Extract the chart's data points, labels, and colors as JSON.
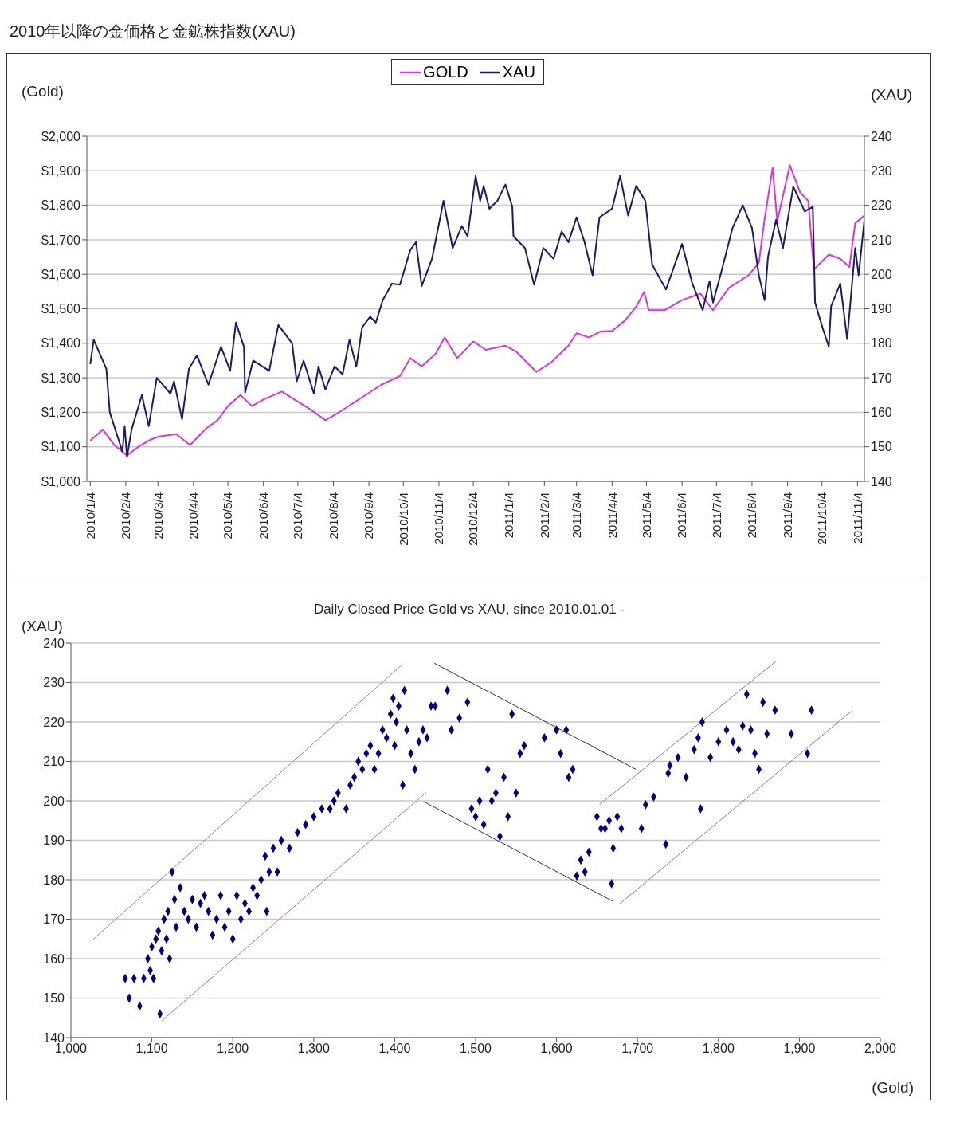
{
  "chart_data": [
    {
      "type": "line",
      "title": "2010年以降の金価格と金鉱株指数(XAU)",
      "ylabel": "(Gold)",
      "y2label": "(XAU)",
      "legend": "top",
      "grid": "y",
      "xlim": [
        "2010-01-01",
        "2011-11-10"
      ],
      "xticks": [
        {
          "value": "2010-01-04",
          "label": "2010/1/4"
        },
        {
          "value": "2010-02-04",
          "label": "2010/2/4"
        },
        {
          "value": "2010-03-04",
          "label": "2010/3/4"
        },
        {
          "value": "2010-04-04",
          "label": "2010/4/4"
        },
        {
          "value": "2010-05-04",
          "label": "2010/5/4"
        },
        {
          "value": "2010-06-04",
          "label": "2010/6/4"
        },
        {
          "value": "2010-07-04",
          "label": "2010/7/4"
        },
        {
          "value": "2010-08-04",
          "label": "2010/8/4"
        },
        {
          "value": "2010-09-04",
          "label": "2010/9/4"
        },
        {
          "value": "2010-10-04",
          "label": "2010/10/4"
        },
        {
          "value": "2010-11-04",
          "label": "2010/11/4"
        },
        {
          "value": "2010-12-04",
          "label": "2010/12/4"
        },
        {
          "value": "2011-01-04",
          "label": "2011/1/4"
        },
        {
          "value": "2011-02-04",
          "label": "2011/2/4"
        },
        {
          "value": "2011-03-04",
          "label": "2011/3/4"
        },
        {
          "value": "2011-04-04",
          "label": "2011/4/4"
        },
        {
          "value": "2011-05-04",
          "label": "2011/5/4"
        },
        {
          "value": "2011-06-04",
          "label": "2011/6/4"
        },
        {
          "value": "2011-07-04",
          "label": "2011/7/4"
        },
        {
          "value": "2011-08-04",
          "label": "2011/8/4"
        },
        {
          "value": "2011-09-04",
          "label": "2011/9/4"
        },
        {
          "value": "2011-10-04",
          "label": "2011/10/4"
        },
        {
          "value": "2011-11-04",
          "label": "2011/11/4"
        }
      ],
      "ylim": [
        1000,
        2000
      ],
      "yticks": [
        {
          "value": 1000,
          "label": "$1,000"
        },
        {
          "value": 1100,
          "label": "$1,100"
        },
        {
          "value": 1200,
          "label": "$1,200"
        },
        {
          "value": 1300,
          "label": "$1,300"
        },
        {
          "value": 1400,
          "label": "$1,400"
        },
        {
          "value": 1500,
          "label": "$1,500"
        },
        {
          "value": 1600,
          "label": "$1,600"
        },
        {
          "value": 1700,
          "label": "$1,700"
        },
        {
          "value": 1800,
          "label": "$1,800"
        },
        {
          "value": 1900,
          "label": "$1,900"
        },
        {
          "value": 2000,
          "label": "$2,000"
        }
      ],
      "y2lim": [
        140,
        240
      ],
      "y2ticks": [
        140,
        150,
        160,
        170,
        180,
        190,
        200,
        210,
        220,
        230,
        240
      ],
      "series": [
        {
          "name": "GOLD",
          "color": "#dd33dd",
          "x": [
            "2010-01-04",
            "2010-01-15",
            "2010-01-25",
            "2010-02-05",
            "2010-02-15",
            "2010-02-25",
            "2010-03-05",
            "2010-03-20",
            "2010-04-01",
            "2010-04-15",
            "2010-04-25",
            "2010-05-04",
            "2010-05-15",
            "2010-05-25",
            "2010-06-04",
            "2010-06-20",
            "2010-07-01",
            "2010-07-15",
            "2010-07-28",
            "2010-08-04",
            "2010-08-15",
            "2010-09-01",
            "2010-09-15",
            "2010-10-01",
            "2010-10-10",
            "2010-10-20",
            "2010-11-01",
            "2010-11-09",
            "2010-11-20",
            "2010-12-04",
            "2010-12-15",
            "2011-01-01",
            "2011-01-10",
            "2011-01-28",
            "2011-02-10",
            "2011-02-25",
            "2011-03-04",
            "2011-03-15",
            "2011-03-25",
            "2011-04-04",
            "2011-04-15",
            "2011-04-25",
            "2011-05-02",
            "2011-05-06",
            "2011-05-20",
            "2011-06-04",
            "2011-06-20",
            "2011-07-01",
            "2011-07-15",
            "2011-08-01",
            "2011-08-10",
            "2011-08-15",
            "2011-08-22",
            "2011-08-26",
            "2011-09-06",
            "2011-09-15",
            "2011-09-22",
            "2011-09-27",
            "2011-10-10",
            "2011-10-20",
            "2011-10-28",
            "2011-11-02",
            "2011-11-10"
          ],
          "values": [
            1118,
            1150,
            1105,
            1075,
            1100,
            1120,
            1130,
            1137,
            1105,
            1153,
            1177,
            1218,
            1250,
            1218,
            1237,
            1260,
            1237,
            1208,
            1177,
            1190,
            1213,
            1250,
            1280,
            1305,
            1357,
            1333,
            1369,
            1417,
            1357,
            1405,
            1381,
            1393,
            1377,
            1317,
            1345,
            1393,
            1429,
            1417,
            1434,
            1436,
            1465,
            1506,
            1549,
            1496,
            1496,
            1525,
            1544,
            1496,
            1561,
            1597,
            1633,
            1760,
            1909,
            1753,
            1916,
            1837,
            1813,
            1614,
            1657,
            1645,
            1621,
            1748,
            1770
          ]
        },
        {
          "name": "XAU",
          "color": "#1a1a6e",
          "axis": "y2",
          "x": [
            "2010-01-04",
            "2010-01-07",
            "2010-01-18",
            "2010-01-21",
            "2010-02-01",
            "2010-02-03",
            "2010-02-05",
            "2010-02-09",
            "2010-02-18",
            "2010-02-24",
            "2010-03-03",
            "2010-03-15",
            "2010-03-18",
            "2010-03-25",
            "2010-03-31",
            "2010-04-07",
            "2010-04-17",
            "2010-04-28",
            "2010-05-06",
            "2010-05-11",
            "2010-05-18",
            "2010-05-19",
            "2010-05-26",
            "2010-06-09",
            "2010-06-17",
            "2010-06-29",
            "2010-07-03",
            "2010-07-09",
            "2010-07-18",
            "2010-07-22",
            "2010-07-28",
            "2010-08-05",
            "2010-08-12",
            "2010-08-18",
            "2010-08-24",
            "2010-08-29",
            "2010-09-05",
            "2010-09-10",
            "2010-09-16",
            "2010-09-24",
            "2010-10-01",
            "2010-10-10",
            "2010-10-15",
            "2010-10-20",
            "2010-10-29",
            "2010-11-08",
            "2010-11-16",
            "2010-11-24",
            "2010-11-29",
            "2010-12-06",
            "2010-12-10",
            "2010-12-13",
            "2010-12-18",
            "2010-12-25",
            "2011-01-01",
            "2011-01-07",
            "2011-01-08",
            "2011-01-18",
            "2011-01-26",
            "2011-02-03",
            "2011-02-12",
            "2011-02-19",
            "2011-02-25",
            "2011-03-04",
            "2011-03-11",
            "2011-03-18",
            "2011-03-24",
            "2011-04-04",
            "2011-04-11",
            "2011-04-18",
            "2011-04-25",
            "2011-05-03",
            "2011-05-09",
            "2011-05-21",
            "2011-06-04",
            "2011-06-13",
            "2011-06-22",
            "2011-06-28",
            "2011-07-01",
            "2011-07-08",
            "2011-07-18",
            "2011-07-27",
            "2011-08-04",
            "2011-08-10",
            "2011-08-15",
            "2011-08-18",
            "2011-08-25",
            "2011-08-31",
            "2011-09-09",
            "2011-09-19",
            "2011-09-26",
            "2011-09-28",
            "2011-10-05",
            "2011-10-10",
            "2011-10-12",
            "2011-10-20",
            "2011-10-26",
            "2011-11-02",
            "2011-11-05",
            "2011-11-10"
          ],
          "values": [
            174,
            181,
            172.6,
            160,
            148.6,
            156,
            147,
            155,
            165,
            156,
            170,
            165.4,
            169,
            158,
            172.6,
            176.5,
            168,
            179,
            172,
            186,
            179,
            165.7,
            175,
            172,
            185.3,
            180,
            169,
            175,
            165.4,
            173.3,
            166.6,
            173.3,
            171,
            181,
            173.3,
            184.6,
            187.7,
            186,
            192.5,
            197.3,
            197,
            207,
            209.3,
            196.6,
            204.5,
            221.3,
            207.6,
            214,
            211,
            228.5,
            221.3,
            225.6,
            219,
            221.3,
            226,
            219.6,
            211,
            207.6,
            197,
            207.6,
            204.5,
            212.4,
            209.3,
            216.5,
            209.3,
            199.7,
            216.5,
            219,
            228.5,
            217,
            225.6,
            221.3,
            202.8,
            195.6,
            208.8,
            197.3,
            189.6,
            198,
            191.8,
            200.4,
            213.4,
            220,
            213.4,
            199.7,
            192.5,
            205.2,
            215.8,
            207.6,
            225.4,
            218.2,
            219.6,
            191.8,
            184,
            179,
            190.8,
            197.3,
            181.2,
            207.6,
            199.7,
            215.8
          ]
        }
      ]
    },
    {
      "type": "scatter",
      "title": "Daily Closed Price Gold vs XAU, since 2010.01.01 -",
      "xlabel": "(Gold)",
      "ylabel": "(XAU)",
      "grid": "y",
      "xlim": [
        1000,
        2000
      ],
      "xticks": [
        {
          "value": 1000,
          "label": "1,000"
        },
        {
          "value": 1100,
          "label": "1,100"
        },
        {
          "value": 1200,
          "label": "1,200"
        },
        {
          "value": 1300,
          "label": "1,300"
        },
        {
          "value": 1400,
          "label": "1,400"
        },
        {
          "value": 1500,
          "label": "1,500"
        },
        {
          "value": 1600,
          "label": "1,600"
        },
        {
          "value": 1700,
          "label": "1,700"
        },
        {
          "value": 1800,
          "label": "1,800"
        },
        {
          "value": 1900,
          "label": "1,900"
        },
        {
          "value": 2000,
          "label": "2,000"
        }
      ],
      "ylim": [
        140,
        240
      ],
      "yticks": [
        140,
        150,
        160,
        170,
        180,
        190,
        200,
        210,
        220,
        230,
        240
      ],
      "series": [
        {
          "color": "#000080",
          "marker": "diamond",
          "x": [
            1067,
            1072,
            1078,
            1085,
            1090,
            1095,
            1098,
            1100,
            1102,
            1105,
            1108,
            1110,
            1112,
            1115,
            1118,
            1120,
            1122,
            1125,
            1128,
            1130,
            1135,
            1140,
            1145,
            1150,
            1155,
            1160,
            1165,
            1170,
            1175,
            1180,
            1185,
            1190,
            1195,
            1200,
            1205,
            1210,
            1215,
            1220,
            1225,
            1230,
            1235,
            1240,
            1242,
            1245,
            1250,
            1255,
            1260,
            1270,
            1280,
            1290,
            1300,
            1310,
            1320,
            1325,
            1330,
            1340,
            1345,
            1350,
            1355,
            1360,
            1365,
            1370,
            1375,
            1380,
            1385,
            1390,
            1395,
            1398,
            1400,
            1402,
            1405,
            1410,
            1412,
            1415,
            1420,
            1425,
            1430,
            1435,
            1440,
            1445,
            1450,
            1465,
            1470,
            1480,
            1490,
            1495,
            1500,
            1505,
            1510,
            1515,
            1520,
            1525,
            1530,
            1535,
            1540,
            1545,
            1550,
            1555,
            1560,
            1585,
            1600,
            1605,
            1612,
            1615,
            1620,
            1625,
            1630,
            1635,
            1640,
            1650,
            1655,
            1660,
            1665,
            1668,
            1670,
            1675,
            1680,
            1705,
            1710,
            1720,
            1735,
            1738,
            1740,
            1750,
            1760,
            1770,
            1775,
            1778,
            1780,
            1790,
            1800,
            1810,
            1818,
            1825,
            1830,
            1835,
            1840,
            1845,
            1850,
            1855,
            1860,
            1870,
            1890,
            1910,
            1915
          ],
          "values": [
            155,
            150,
            155,
            148,
            155,
            160,
            157,
            163,
            155,
            165,
            167,
            146,
            162,
            170,
            165,
            172,
            160,
            182,
            175,
            168,
            178,
            172,
            170,
            175,
            168,
            174,
            176,
            172,
            166,
            170,
            176,
            168,
            172,
            165,
            176,
            170,
            174,
            172,
            178,
            176,
            180,
            186,
            172,
            182,
            188,
            182,
            190,
            188,
            192,
            194,
            196,
            198,
            198,
            200,
            202,
            198,
            204,
            206,
            210,
            208,
            212,
            214,
            208,
            212,
            218,
            216,
            222,
            226,
            214,
            220,
            224,
            204,
            228,
            218,
            212,
            208,
            215,
            218,
            216,
            224,
            224,
            228,
            218,
            221,
            225,
            198,
            196,
            200,
            194,
            208,
            200,
            202,
            191,
            206,
            196,
            222,
            202,
            212,
            214,
            216,
            218,
            212,
            218,
            206,
            208,
            181,
            185,
            182,
            187,
            196,
            193,
            193,
            195,
            179,
            188,
            196,
            193,
            193,
            199,
            201,
            189,
            207,
            209,
            211,
            206,
            213,
            216,
            198,
            220,
            211,
            215,
            218,
            215,
            213,
            219,
            227,
            218,
            212,
            208,
            225,
            217,
            223,
            217,
            212,
            223
          ]
        },
        {
          "type": "line",
          "color": "#c87878",
          "x": [
            1027,
            1410
          ],
          "values": [
            164.8,
            234.7
          ]
        },
        {
          "type": "line",
          "color": "#c87878",
          "x": [
            1112,
            1439
          ],
          "values": [
            144.2,
            202.1
          ]
        },
        {
          "type": "line",
          "color": "#333333",
          "x": [
            1449,
            1698
          ],
          "values": [
            234.9,
            208
          ]
        },
        {
          "type": "line",
          "color": "#333333",
          "x": [
            1436,
            1670
          ],
          "values": [
            199.8,
            174.5
          ]
        },
        {
          "type": "line",
          "color": "#7a80b8",
          "x": [
            1653,
            1871
          ],
          "values": [
            199,
            235.4
          ]
        },
        {
          "type": "line",
          "color": "#7a80b8",
          "x": [
            1678,
            1964
          ],
          "values": [
            173.9,
            222.7
          ]
        }
      ]
    }
  ]
}
